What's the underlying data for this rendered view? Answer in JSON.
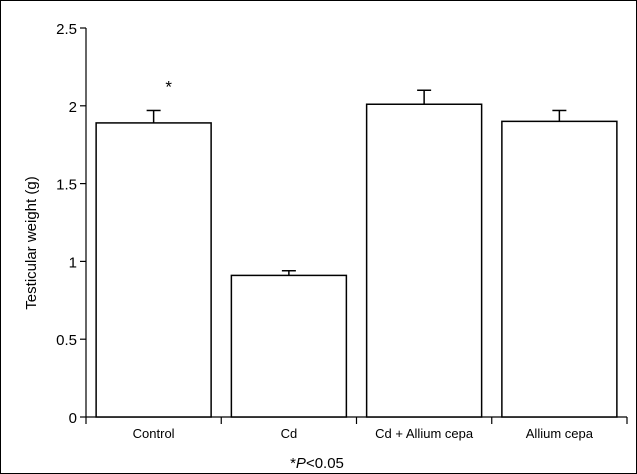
{
  "chart_data": {
    "type": "bar",
    "title": "",
    "xlabel": "",
    "ylabel": "Testicular weight (g)",
    "ylim": [
      0,
      2.5
    ],
    "yticks": [
      "0",
      "0.5",
      "1",
      "1.5",
      "2",
      "2.5"
    ],
    "categories": [
      "Control",
      "Cd",
      "Cd + Allium cepa",
      "Allium cepa"
    ],
    "values": [
      1.89,
      0.91,
      2.01,
      1.9
    ],
    "error": [
      0.08,
      0.03,
      0.09,
      0.07
    ],
    "annotations": [
      "*",
      "",
      "",
      ""
    ],
    "grid": false,
    "bar_fill": "#ffffff",
    "bar_stroke": "#000000"
  },
  "footnote": {
    "star": "*",
    "p_symbol": "P",
    "rest": "<0.05"
  }
}
